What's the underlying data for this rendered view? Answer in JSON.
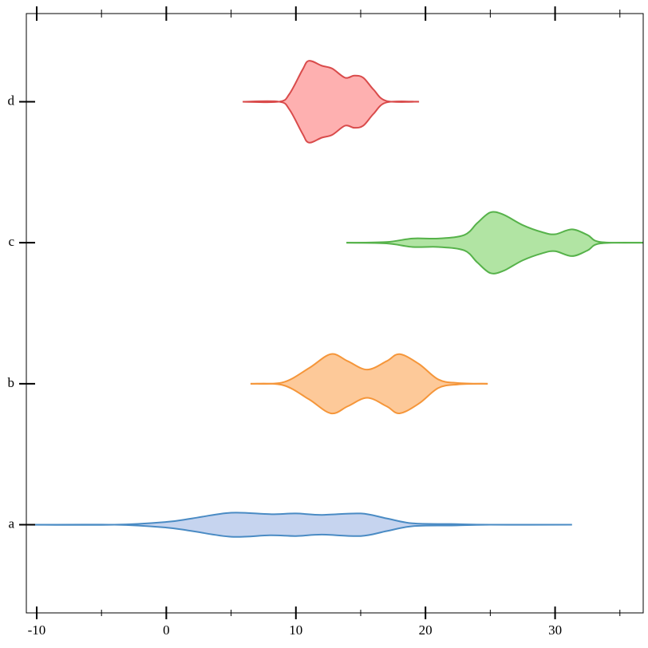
{
  "chart_data": {
    "type": "violin",
    "categories": [
      "a",
      "b",
      "c",
      "d"
    ],
    "series": [
      {
        "name": "a",
        "fill": "#c6d4ef",
        "color": "#4a8bc4",
        "x": [
          -10.8,
          -4,
          0,
          2,
          5,
          8,
          10,
          12,
          15,
          17,
          19,
          22,
          25,
          31.3
        ],
        "values": [
          0,
          0,
          0.02,
          0.045,
          0.085,
          0.075,
          0.08,
          0.07,
          0.08,
          0.045,
          0.01,
          0.005,
          0,
          0
        ]
      },
      {
        "name": "b",
        "fill": "#fdc999",
        "color": "#f5963a",
        "x": [
          6.5,
          9,
          11,
          12.7,
          14,
          15.5,
          17,
          18,
          19.5,
          21,
          22.5,
          24.8
        ],
        "values": [
          0,
          0.01,
          0.11,
          0.21,
          0.16,
          0.1,
          0.16,
          0.21,
          0.14,
          0.03,
          0.005,
          0
        ]
      },
      {
        "name": "c",
        "fill": "#b1e4a3",
        "color": "#56b24a",
        "x": [
          13.9,
          17,
          19,
          21,
          23,
          24,
          25,
          26,
          27.5,
          29,
          30,
          31.3,
          32.5,
          33.5,
          36.8
        ],
        "values": [
          0,
          0.005,
          0.03,
          0.03,
          0.055,
          0.14,
          0.215,
          0.2,
          0.125,
          0.075,
          0.06,
          0.095,
          0.055,
          0.005,
          0
        ]
      },
      {
        "name": "d",
        "fill": "#feb0b0",
        "color": "#d94b4b",
        "x": [
          5.9,
          8.7,
          9.5,
          10.5,
          11,
          12,
          12.8,
          13.8,
          14.5,
          15.2,
          16,
          17,
          19.5
        ],
        "values": [
          0,
          0,
          0.055,
          0.225,
          0.29,
          0.255,
          0.235,
          0.17,
          0.185,
          0.17,
          0.085,
          0.005,
          0
        ]
      }
    ],
    "xlim": [
      -10.8,
      36.8
    ],
    "xticks": [
      -10,
      0,
      10,
      20,
      30
    ],
    "xminorticks": [
      -5,
      5,
      15,
      25,
      35
    ],
    "ylim": [
      -0.625,
      3.625
    ]
  }
}
